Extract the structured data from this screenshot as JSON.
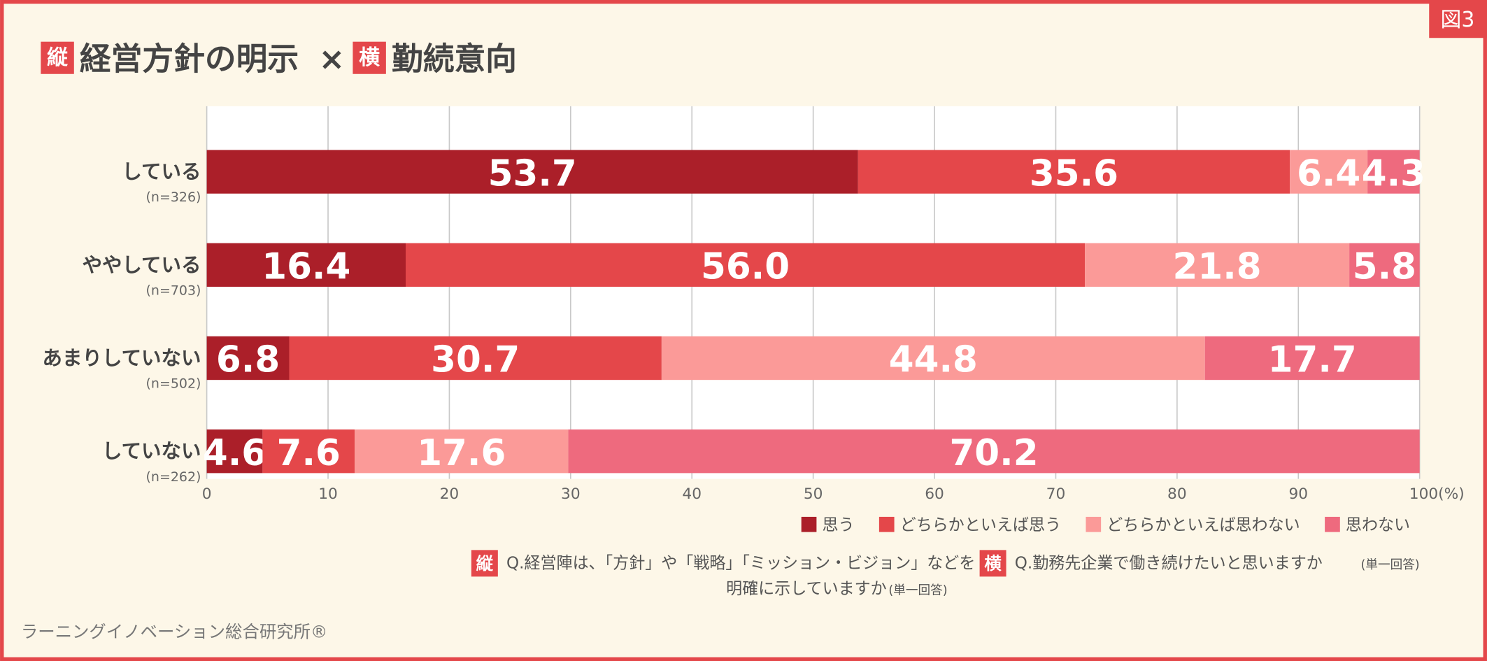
{
  "figure_label": "図3",
  "chart_data": {
    "type": "stacked-bar-horizontal",
    "title": {
      "badge_1": "縦",
      "part_1": "経営方針の明示",
      "separator": "×",
      "badge_2": "横",
      "part_2": "勤続意向"
    },
    "categories": [
      "している",
      "ややしている",
      "あまりしていない",
      "していない"
    ],
    "category_notes": [
      "(n=326)",
      "(n=703)",
      "(n=502)",
      "(n=262)"
    ],
    "series": [
      {
        "name": "思う",
        "color": "#ab1f29",
        "values": [
          53.7,
          16.4,
          6.8,
          4.6
        ]
      },
      {
        "name": "どちらかといえば思う",
        "color": "#e4474a",
        "values": [
          35.6,
          56.0,
          30.7,
          7.6
        ]
      },
      {
        "name": "どちらかといえば思わない",
        "color": "#fb9a98",
        "values": [
          6.4,
          21.8,
          44.8,
          17.6
        ]
      },
      {
        "name": "思わない",
        "color": "#ee6a7e",
        "values": [
          4.3,
          5.8,
          17.7,
          70.2
        ]
      }
    ],
    "value_labels": [
      [
        "53.7",
        "16.4",
        "6.8",
        "4.6"
      ],
      [
        "35.6",
        "56.0",
        "30.7",
        "7.6"
      ],
      [
        "6.4",
        "21.8",
        "44.8",
        "17.6"
      ],
      [
        "4.3",
        "5.8",
        "17.7",
        "70.2"
      ]
    ],
    "xlim": [
      0,
      100
    ],
    "xticks": [
      0,
      10,
      20,
      30,
      40,
      50,
      60,
      70,
      80,
      90,
      {
        "value": 100,
        "label": "100(%)"
      }
    ],
    "grid": true,
    "legend": "bottom-right",
    "notes": [
      {
        "badge": "縦",
        "lines": [
          "Q.経営陣は、「方針」や「戦略」「ミッション・ビジョン」などを",
          "明確に示していますか"
        ],
        "suffix": "(単一回答)"
      },
      {
        "badge": "横",
        "lines": [
          "Q.勤務先企業で働き続けたいと思いますか"
        ],
        "suffix": "(単一回答)"
      }
    ],
    "source": "ラーニングイノベーション総合研究所®"
  }
}
